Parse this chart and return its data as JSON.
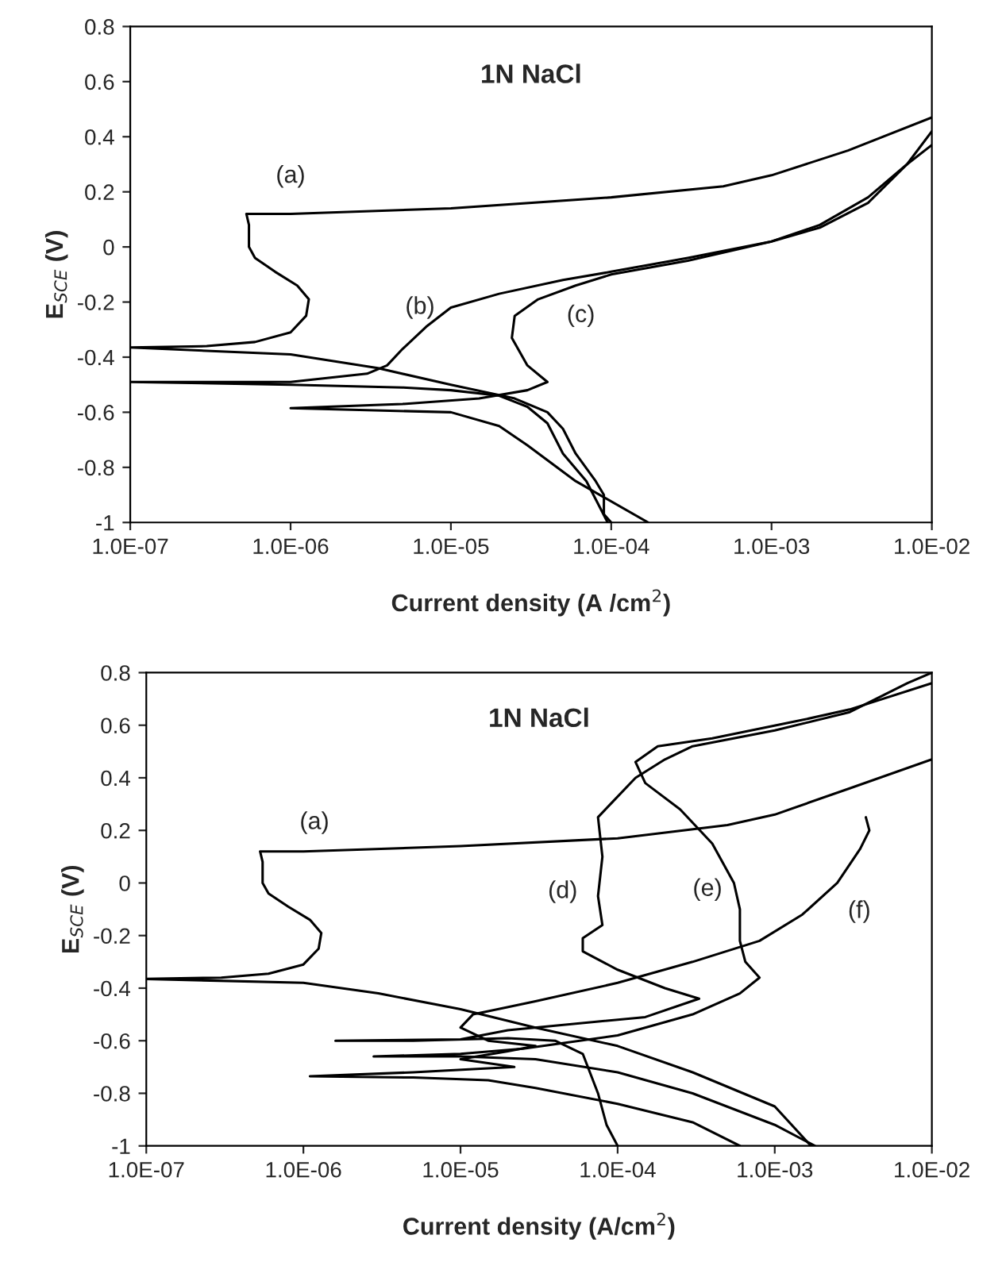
{
  "chart_data": [
    {
      "type": "line",
      "title": "1N NaCl",
      "xlabel": "Current density (A /cm$^{2}$)",
      "ylabel": "E$_{SCE}$ (V)",
      "log": "x",
      "grid": false,
      "legend": false,
      "marker": "none",
      "line_style": "solid",
      "xlim": [
        1e-07,
        0.01
      ],
      "xticks": [
        {
          "value": 1e-07,
          "label": "1.0E-07"
        },
        {
          "value": 1e-06,
          "label": "1.0E-06"
        },
        {
          "value": 1e-05,
          "label": "1.0E-05"
        },
        {
          "value": 0.0001,
          "label": "1.0E-04"
        },
        {
          "value": 0.001,
          "label": "1.0E-03"
        },
        {
          "value": 0.01,
          "label": "1.0E-02"
        }
      ],
      "ylim": [
        -1,
        0.8
      ],
      "yticks": [
        -1,
        -0.8,
        -0.6,
        -0.4,
        -0.2,
        0,
        0.2,
        0.4,
        0.6,
        0.8
      ],
      "series": [
        {
          "color": "#000000",
          "x": [
            0.0001,
            9e-05,
            9e-05,
            8e-05,
            6e-05,
            5e-05,
            4e-05,
            2.5e-05,
            1e-05,
            3.5e-06,
            1e-06,
            1e-07,
            3e-07,
            6e-07,
            1e-06,
            1.25e-06,
            1.3e-06,
            1.1e-06,
            8e-07,
            6e-07,
            5.5e-07,
            5.5e-07,
            5.3e-07,
            1e-06,
            1e-05,
            0.0001,
            0.0005,
            0.001,
            0.003,
            0.01
          ],
          "values": [
            -1,
            -0.97,
            -0.9,
            -0.85,
            -0.75,
            -0.66,
            -0.6,
            -0.55,
            -0.5,
            -0.44,
            -0.39,
            -0.365,
            -0.36,
            -0.345,
            -0.31,
            -0.25,
            -0.19,
            -0.14,
            -0.09,
            -0.04,
            0.0,
            0.08,
            0.12,
            0.12,
            0.14,
            0.18,
            0.22,
            0.26,
            0.35,
            0.47
          ]
        },
        {
          "color": "#000000",
          "x": [
            9.5e-05,
            7e-05,
            5e-05,
            4e-05,
            3e-05,
            2e-05,
            1e-05,
            5e-06,
            1e-06,
            1e-07,
            1e-06,
            3e-06,
            4e-06,
            5e-06,
            7e-06,
            1e-05,
            2e-05,
            5e-05,
            0.0001,
            0.0003,
            0.001,
            0.002,
            0.004,
            0.007,
            0.01
          ],
          "values": [
            -1,
            -0.85,
            -0.75,
            -0.64,
            -0.58,
            -0.54,
            -0.52,
            -0.51,
            -0.5,
            -0.49,
            -0.49,
            -0.46,
            -0.43,
            -0.37,
            -0.29,
            -0.22,
            -0.17,
            -0.12,
            -0.09,
            -0.04,
            0.02,
            0.08,
            0.18,
            0.3,
            0.42
          ]
        },
        {
          "color": "#000000",
          "x": [
            0.00017,
            6e-05,
            3e-05,
            2e-05,
            1e-05,
            1e-06,
            5e-06,
            1.5e-05,
            3e-05,
            4e-05,
            3e-05,
            2.4e-05,
            2.5e-05,
            3.5e-05,
            6e-05,
            0.0001,
            0.0003,
            0.001,
            0.002,
            0.004,
            0.007,
            0.01
          ],
          "values": [
            -1,
            -0.85,
            -0.72,
            -0.65,
            -0.6,
            -0.585,
            -0.57,
            -0.55,
            -0.52,
            -0.49,
            -0.43,
            -0.33,
            -0.25,
            -0.19,
            -0.14,
            -0.1,
            -0.05,
            0.02,
            0.07,
            0.16,
            0.3,
            0.37
          ]
        }
      ],
      "annotations": [
        {
          "text": "(a)",
          "x": 1e-06,
          "y": 0.12
        },
        {
          "text": "(b)",
          "x": 1e-05,
          "y": -0.22
        },
        {
          "text": "(c)",
          "x": 2.5e-05,
          "y": -0.25
        }
      ]
    },
    {
      "type": "line",
      "title": "1N NaCl",
      "xlabel": "Current density (A/cm$^{2}$)",
      "ylabel": "E$_{SCE}$ (V)",
      "log": "x",
      "grid": false,
      "legend": false,
      "marker": "none",
      "line_style": "solid",
      "xlim": [
        1e-07,
        0.01
      ],
      "xticks": [
        {
          "value": 1e-07,
          "label": "1.0E-07"
        },
        {
          "value": 1e-06,
          "label": "1.0E-06"
        },
        {
          "value": 1e-05,
          "label": "1.0E-05"
        },
        {
          "value": 0.0001,
          "label": "1.0E-04"
        },
        {
          "value": 0.001,
          "label": "1.0E-03"
        },
        {
          "value": 0.01,
          "label": "1.0E-02"
        }
      ],
      "ylim": [
        -1,
        0.8
      ],
      "yticks": [
        -1,
        -0.8,
        -0.6,
        -0.4,
        -0.2,
        0,
        0.2,
        0.4,
        0.6,
        0.8
      ],
      "series": [
        {
          "color": "#000000",
          "x": [
            0.0017,
            0.001,
            0.0003,
            0.0001,
            3e-05,
            1e-05,
            3e-06,
            1e-06,
            1e-07,
            3e-07,
            6e-07,
            1e-06,
            1.25e-06,
            1.3e-06,
            1.1e-06,
            8e-07,
            6e-07,
            5.5e-07,
            5.5e-07,
            5.3e-07,
            1e-06,
            1e-05,
            0.0001,
            0.0005,
            0.001,
            0.003,
            0.01
          ],
          "values": [
            -1,
            -0.85,
            -0.72,
            -0.62,
            -0.55,
            -0.48,
            -0.42,
            -0.38,
            -0.365,
            -0.36,
            -0.345,
            -0.31,
            -0.25,
            -0.19,
            -0.14,
            -0.09,
            -0.04,
            0.0,
            0.08,
            0.12,
            0.12,
            0.14,
            0.17,
            0.22,
            0.26,
            0.36,
            0.47
          ]
        },
        {
          "color": "#000000",
          "x": [
            0.0001,
            8.5e-05,
            7.5e-05,
            6e-05,
            4e-05,
            2e-05,
            5e-06,
            1.6e-06,
            1e-05,
            2e-05,
            0.00015,
            0.00033,
            0.0002,
            0.0001,
            6e-05,
            6e-05,
            8e-05,
            7.5e-05,
            8e-05,
            7.5e-05,
            9e-05,
            0.00013,
            0.0002,
            0.0003,
            0.001,
            0.003,
            0.007,
            0.01
          ],
          "values": [
            -1,
            -0.92,
            -0.8,
            -0.65,
            -0.6,
            -0.59,
            -0.6,
            -0.6,
            -0.595,
            -0.56,
            -0.51,
            -0.44,
            -0.4,
            -0.33,
            -0.26,
            -0.21,
            -0.16,
            -0.05,
            0.1,
            0.25,
            0.3,
            0.4,
            0.47,
            0.52,
            0.58,
            0.65,
            0.76,
            0.8
          ]
        },
        {
          "color": "#000000",
          "x": [
            0.0018,
            0.001,
            0.0003,
            0.0001,
            3e-05,
            1e-05,
            2.8e-06,
            1e-05,
            2.5e-05,
            0.0001,
            0.0003,
            0.0006,
            0.0008,
            0.00065,
            0.0006,
            0.0006,
            0.00055,
            0.0004,
            0.00025,
            0.00015,
            0.00013,
            0.00018,
            0.0004,
            0.0015,
            0.003,
            0.01
          ],
          "values": [
            -1,
            -0.92,
            -0.8,
            -0.72,
            -0.67,
            -0.66,
            -0.66,
            -0.65,
            -0.63,
            -0.58,
            -0.5,
            -0.42,
            -0.36,
            -0.3,
            -0.22,
            -0.1,
            0.0,
            0.15,
            0.28,
            0.38,
            0.46,
            0.52,
            0.55,
            0.62,
            0.66,
            0.76
          ]
        },
        {
          "color": "#000000",
          "x": [
            0.0006,
            0.0003,
            0.0001,
            3e-05,
            1.5e-05,
            5e-06,
            1.1e-06,
            5e-06,
            2.2e-05,
            1e-05,
            2e-05,
            3e-05,
            1.5e-05,
            1e-05,
            1.2e-05,
            3e-05,
            0.0001,
            0.0003,
            0.0008,
            0.0015,
            0.0025,
            0.0035,
            0.004,
            0.0038
          ],
          "values": [
            -1,
            -0.91,
            -0.84,
            -0.78,
            -0.75,
            -0.74,
            -0.735,
            -0.72,
            -0.7,
            -0.67,
            -0.64,
            -0.62,
            -0.6,
            -0.55,
            -0.5,
            -0.45,
            -0.38,
            -0.3,
            -0.22,
            -0.12,
            0.0,
            0.13,
            0.2,
            0.25
          ]
        }
      ],
      "annotations": [
        {
          "text": "(a)",
          "x": 1e-06,
          "y": 0.12
        },
        {
          "text": "(d)",
          "x": 7.5e-05,
          "y": -0.05
        },
        {
          "text": "(e)",
          "x": 0.00055,
          "y": 0.0
        },
        {
          "text": "(f)",
          "x": 0.0025,
          "y": 0.0
        }
      ]
    }
  ]
}
